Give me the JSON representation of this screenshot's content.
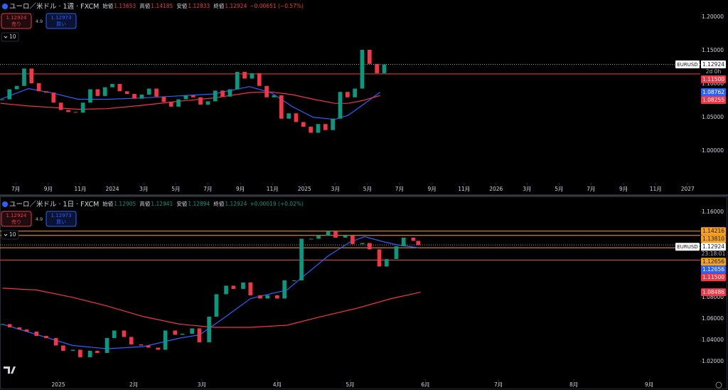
{
  "chart_data": [
    {
      "type": "candlestick",
      "title": "ユーロ／米ドル · 1週 · FXCM",
      "ohlc": {
        "open_label": "始値",
        "open": "1.13653",
        "high_label": "高値",
        "high": "1.14185",
        "low_label": "安値",
        "low": "1.12833",
        "close_label": "終値",
        "close": "1.12924",
        "change": "−0.00651 (−0.57%)",
        "color": "#f23645"
      },
      "sell": {
        "price": "1.12924",
        "label": "売り"
      },
      "spread": "4.9",
      "buy": {
        "price": "1.12973",
        "label": "買い"
      },
      "indicator": "10",
      "up_color": "#089981",
      "down_color": "#f23645",
      "x": [
        "2023-06-05",
        "2023-06-19",
        "2023-07-03",
        "2023-07-17",
        "2023-07-31",
        "2023-08-14",
        "2023-08-28",
        "2023-09-11",
        "2023-09-25",
        "2023-10-09",
        "2023-10-23",
        "2023-11-06",
        "2023-11-20",
        "2023-12-04",
        "2023-12-18",
        "2024-01-01",
        "2024-01-15",
        "2024-01-29",
        "2024-02-12",
        "2024-02-26",
        "2024-03-11",
        "2024-03-25",
        "2024-04-08",
        "2024-04-22",
        "2024-05-06",
        "2024-05-20",
        "2024-06-03",
        "2024-06-17",
        "2024-07-01",
        "2024-07-15",
        "2024-07-29",
        "2024-08-12",
        "2024-08-26",
        "2024-09-09",
        "2024-09-23",
        "2024-10-07",
        "2024-10-21",
        "2024-11-04",
        "2024-11-18",
        "2024-12-02",
        "2024-12-16",
        "2024-12-30",
        "2025-01-13",
        "2025-01-27",
        "2025-02-10",
        "2025-02-24",
        "2025-03-10",
        "2025-03-24",
        "2025-04-07",
        "2025-04-21",
        "2025-05-05",
        "2025-05-19",
        "2025-06-02"
      ],
      "values": [
        1.077,
        1.092,
        1.097,
        1.123,
        1.101,
        1.089,
        1.087,
        1.072,
        1.061,
        1.058,
        1.057,
        1.072,
        1.092,
        1.082,
        1.095,
        1.1,
        1.089,
        1.085,
        1.078,
        1.084,
        1.093,
        1.081,
        1.073,
        1.066,
        1.077,
        1.083,
        1.08,
        1.069,
        1.074,
        1.09,
        1.081,
        1.092,
        1.118,
        1.108,
        1.116,
        1.097,
        1.08,
        1.083,
        1.048,
        1.056,
        1.043,
        1.036,
        1.027,
        1.04,
        1.031,
        1.048,
        1.088,
        1.08,
        1.093,
        1.151,
        1.13,
        1.116,
        1.129
      ],
      "lines": [
        {
          "color": "#2962ff",
          "x": [
            "2023-06-02",
            "2023-07-25",
            "2023-09-05",
            "2023-10-28",
            "2023-12-22",
            "2024-02-27",
            "2024-05-05",
            "2024-07-12",
            "2024-09-18",
            "2024-10-29",
            "2024-12-09",
            "2025-01-18",
            "2025-02-28",
            "2025-03-25",
            "2025-04-21",
            "2025-05-25"
          ],
          "values": [
            1.077,
            1.093,
            1.087,
            1.077,
            1.077,
            1.079,
            1.082,
            1.085,
            1.096,
            1.087,
            1.066,
            1.05,
            1.047,
            1.053,
            1.068,
            1.0876
          ]
        },
        {
          "color": "#f23645",
          "x": [
            "2023-06-02",
            "2023-07-25",
            "2023-09-05",
            "2023-10-28",
            "2023-12-22",
            "2024-02-27",
            "2024-05-05",
            "2024-07-12",
            "2024-09-18",
            "2024-10-29",
            "2024-12-09",
            "2025-01-18",
            "2025-02-28",
            "2025-03-25",
            "2025-04-21",
            "2025-05-25"
          ],
          "values": [
            1.071,
            1.067,
            1.065,
            1.062,
            1.063,
            1.068,
            1.074,
            1.079,
            1.087,
            1.088,
            1.084,
            1.077,
            1.071,
            1.071,
            1.075,
            1.0826
          ]
        }
      ],
      "xlim": [
        "2023-06-01",
        "2027-01-25"
      ],
      "xticks": [
        {
          "value": "2023-07-01",
          "label": "7月"
        },
        {
          "value": "2023-09-01",
          "label": "9月"
        },
        {
          "value": "2023-11-01",
          "label": "11月"
        },
        {
          "value": "2024-01-01",
          "label": "2024"
        },
        {
          "value": "2024-03-01",
          "label": "3月"
        },
        {
          "value": "2024-05-01",
          "label": "5月"
        },
        {
          "value": "2024-07-01",
          "label": "7月"
        },
        {
          "value": "2024-09-01",
          "label": "9月"
        },
        {
          "value": "2024-11-01",
          "label": "11月"
        },
        {
          "value": "2025-01-01",
          "label": "2025"
        },
        {
          "value": "2025-03-01",
          "label": "3月"
        },
        {
          "value": "2025-05-01",
          "label": "5月"
        },
        {
          "value": "2025-07-01",
          "label": "7月"
        },
        {
          "value": "2025-09-01",
          "label": "9月"
        },
        {
          "value": "2025-11-01",
          "label": "11月"
        },
        {
          "value": "2026-01-01",
          "label": "2026"
        },
        {
          "value": "2026-03-01",
          "label": "3月"
        },
        {
          "value": "2026-05-01",
          "label": "5月"
        },
        {
          "value": "2026-07-01",
          "label": "7月"
        },
        {
          "value": "2026-09-01",
          "label": "9月"
        },
        {
          "value": "2026-11-01",
          "label": "11月"
        },
        {
          "value": "2027-01-01",
          "label": "2027"
        }
      ],
      "ylim": [
        0.952,
        1.2255
      ],
      "yticks": [
        {
          "value": 1.2,
          "label": "1.20000"
        },
        {
          "value": 1.15,
          "label": "1.15000"
        },
        {
          "value": 1.1,
          "label": "1.10000"
        },
        {
          "value": 1.05,
          "label": "1.05000"
        },
        {
          "value": 1.0,
          "label": "1.00000"
        }
      ],
      "levels": [
        {
          "value": 1.12924,
          "label": "1.12924",
          "color": "#ffffff",
          "line": "dotted",
          "symbol": "EURUSD",
          "countdown": "2d 0h"
        },
        {
          "value": 1.115,
          "label": "1.11500",
          "color": "#f23645",
          "line": "solid"
        },
        {
          "value": 1.08762,
          "label": "1.08762",
          "color": "#2962ff"
        },
        {
          "value": 1.08255,
          "label": "1.08255",
          "color": "#f23645"
        }
      ]
    },
    {
      "type": "candlestick",
      "title": "ユーロ／米ドル · 1日 · FXCM",
      "ohlc": {
        "open_label": "始値",
        "open": "1.12905",
        "high_label": "高値",
        "high": "1.12941",
        "low_label": "安値",
        "low": "1.12894",
        "close_label": "終値",
        "close": "1.12924",
        "change": "+0.00019 (+0.02%)",
        "color": "#089981"
      },
      "sell": {
        "price": "1.12924",
        "label": "売り"
      },
      "spread": "4.9",
      "buy": {
        "price": "1.12973",
        "label": "買い"
      },
      "indicator": "10",
      "up_color": "#089981",
      "down_color": "#f23645",
      "x": [
        "2024-12-09",
        "2024-12-12",
        "2024-12-16",
        "2024-12-19",
        "2024-12-23",
        "2024-12-27",
        "2024-12-31",
        "2025-01-03",
        "2025-01-07",
        "2025-01-10",
        "2025-01-14",
        "2025-01-17",
        "2025-01-21",
        "2025-01-24",
        "2025-01-28",
        "2025-01-31",
        "2025-02-04",
        "2025-02-07",
        "2025-02-11",
        "2025-02-14",
        "2025-02-18",
        "2025-02-21",
        "2025-02-25",
        "2025-02-28",
        "2025-03-04",
        "2025-03-07",
        "2025-03-11",
        "2025-03-14",
        "2025-03-18",
        "2025-03-21",
        "2025-03-25",
        "2025-03-28",
        "2025-04-01",
        "2025-04-04",
        "2025-04-08",
        "2025-04-11",
        "2025-04-15",
        "2025-04-18",
        "2025-04-22",
        "2025-04-25",
        "2025-04-29",
        "2025-05-02",
        "2025-05-06",
        "2025-05-09",
        "2025-05-13",
        "2025-05-16",
        "2025-05-20",
        "2025-05-23",
        "2025-05-27",
        "2025-05-29"
      ],
      "values": [
        1.055,
        1.052,
        1.05,
        1.048,
        1.044,
        1.042,
        1.035,
        1.03,
        1.031,
        1.024,
        1.03,
        1.028,
        1.042,
        1.049,
        1.043,
        1.036,
        1.035,
        1.033,
        1.031,
        1.049,
        1.045,
        1.046,
        1.051,
        1.038,
        1.062,
        1.083,
        1.091,
        1.088,
        1.094,
        1.082,
        1.079,
        1.082,
        1.079,
        1.096,
        1.096,
        1.135,
        1.135,
        1.138,
        1.142,
        1.136,
        1.138,
        1.13,
        1.131,
        1.125,
        1.109,
        1.116,
        1.128,
        1.136,
        1.133,
        1.129
      ],
      "lines": [
        {
          "color": "#2962ff",
          "x": [
            "2024-12-09",
            "2025-01-07",
            "2025-01-21",
            "2025-02-05",
            "2025-02-20",
            "2025-02-28",
            "2025-03-09",
            "2025-03-21",
            "2025-04-05",
            "2025-04-13",
            "2025-04-22",
            "2025-05-01",
            "2025-05-07",
            "2025-05-15",
            "2025-05-21",
            "2025-05-29"
          ],
          "values": [
            1.055,
            1.035,
            1.032,
            1.034,
            1.042,
            1.045,
            1.059,
            1.079,
            1.087,
            1.102,
            1.119,
            1.132,
            1.137,
            1.132,
            1.129,
            1.1266
          ]
        },
        {
          "color": "#f23645",
          "x": [
            "2024-12-09",
            "2024-12-23",
            "2025-01-07",
            "2025-01-21",
            "2025-02-05",
            "2025-02-20",
            "2025-03-06",
            "2025-03-21",
            "2025-04-05",
            "2025-04-19",
            "2025-05-04",
            "2025-05-18",
            "2025-05-30"
          ],
          "values": [
            1.0887,
            1.087,
            1.08,
            1.072,
            1.062,
            1.055,
            1.052,
            1.052,
            1.054,
            1.062,
            1.07,
            1.079,
            1.0849
          ]
        }
      ],
      "xlim": [
        "2024-12-08",
        "2025-09-22"
      ],
      "xticks": [
        {
          "value": "2025-01-01",
          "label": "2025"
        },
        {
          "value": "2025-02-01",
          "label": "2月"
        },
        {
          "value": "2025-03-01",
          "label": "3月"
        },
        {
          "value": "2025-04-01",
          "label": "4月"
        },
        {
          "value": "2025-05-01",
          "label": "5月"
        },
        {
          "value": "2025-06-01",
          "label": "6月"
        },
        {
          "value": "2025-07-01",
          "label": "7月"
        },
        {
          "value": "2025-08-01",
          "label": "8月"
        },
        {
          "value": "2025-09-01",
          "label": "9月"
        }
      ],
      "ylim": [
        1.0033,
        1.1733
      ],
      "yticks": [
        {
          "value": 1.16,
          "label": "1.16000"
        },
        {
          "value": 1.08,
          "label": "1.08000"
        },
        {
          "value": 1.06,
          "label": "1.06000"
        },
        {
          "value": 1.04,
          "label": "1.04000"
        },
        {
          "value": 1.02,
          "label": "1.02000"
        }
      ],
      "levels": [
        {
          "value": 1.14216,
          "label": "1.14216",
          "color": "#f7a21b",
          "line": "solid"
        },
        {
          "value": 1.1381,
          "label": "1.13810",
          "color": "#f7a21b",
          "line": "solid"
        },
        {
          "value": 1.12924,
          "label": "1.12924",
          "color": "#ffffff",
          "line": "dotted",
          "symbol": "EURUSD",
          "countdown": "23:18:01"
        },
        {
          "value": 1.12656,
          "label": "1.12656",
          "color": "#f7a21b",
          "line": "solid"
        },
        {
          "value": 1.12656,
          "label": "1.12656",
          "color": "#2962ff"
        },
        {
          "value": 1.115,
          "label": "1.11500",
          "color": "#f23645",
          "line": "solid"
        },
        {
          "value": 1.08486,
          "label": "1.08486",
          "color": "#f23645"
        }
      ]
    }
  ]
}
